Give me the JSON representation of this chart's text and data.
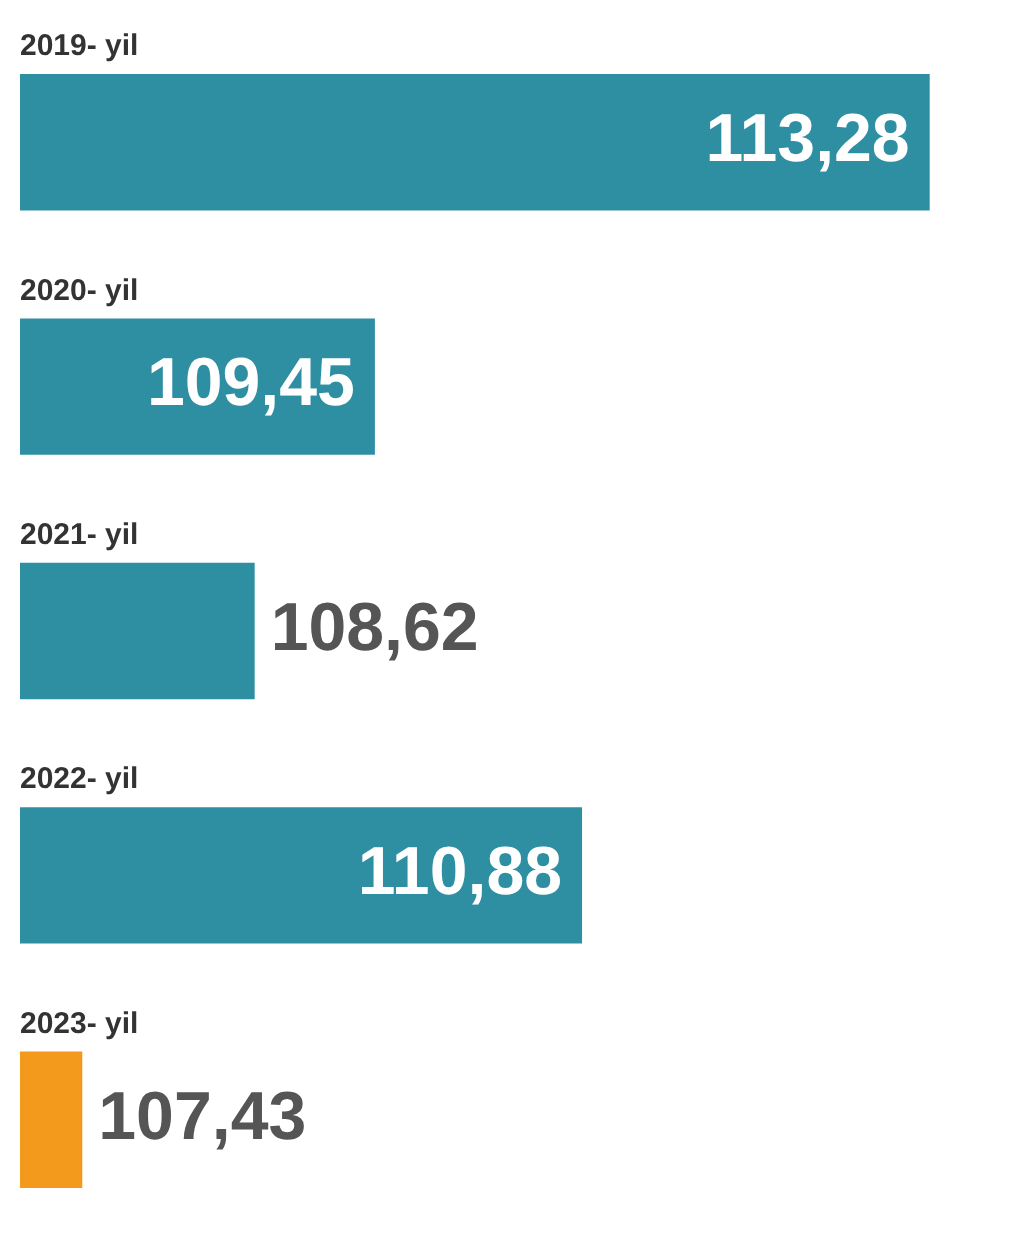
{
  "chart_data": {
    "type": "bar",
    "orientation": "horizontal",
    "categories": [
      "2019- yil",
      "2020- yil",
      "2021- yil",
      "2022- yil",
      "2023- yil"
    ],
    "values": [
      113.28,
      109.45,
      108.62,
      110.88,
      107.43
    ],
    "colors": [
      "#2e8fa3",
      "#2e8fa3",
      "#2e8fa3",
      "#2e8fa3",
      "#f39a1c"
    ],
    "value_labels": [
      "113,28",
      "109,45",
      "108,62",
      "110,88",
      "107,43"
    ],
    "legend": false,
    "tick_labels": false
  }
}
